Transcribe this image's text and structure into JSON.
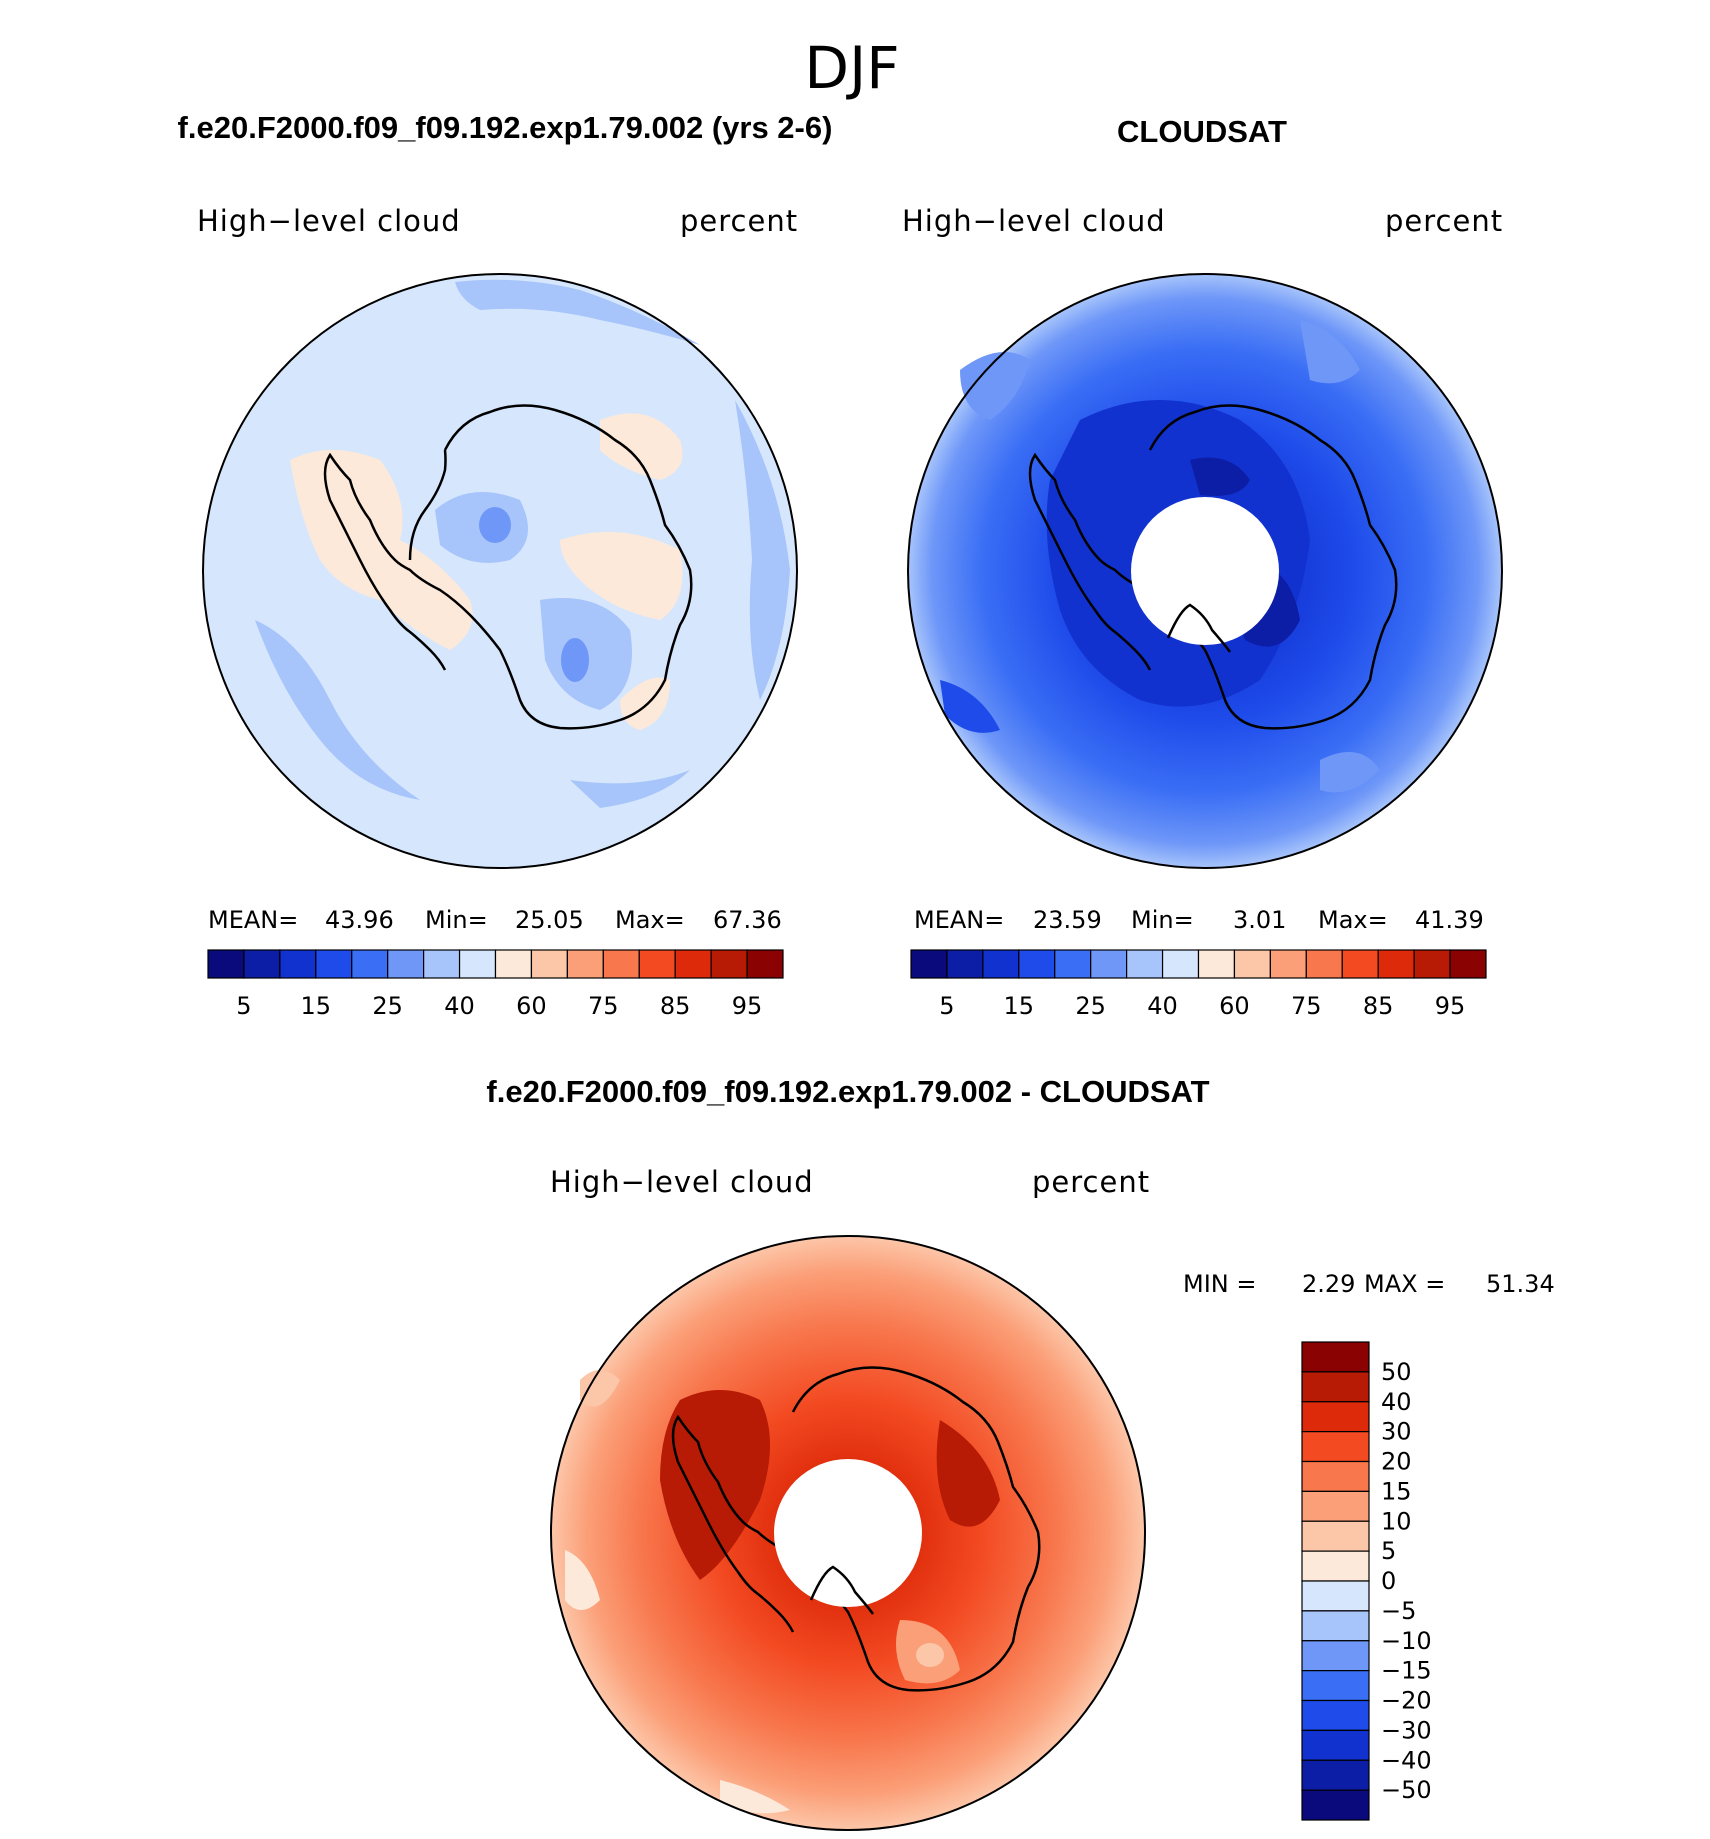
{
  "season_title": "DJF",
  "color_scale_abs": [
    "#0a0a7d",
    "#0c1ea6",
    "#1232d0",
    "#1e4bea",
    "#3a6ef5",
    "#6e97f8",
    "#a7c4fb",
    "#d6e7fd",
    "#fde9d9",
    "#fcc6a8",
    "#fb9f78",
    "#f8774d",
    "#f34a22",
    "#dd2a0a",
    "#b71a05",
    "#8a0202"
  ],
  "color_scale_diff": [
    "#0a0a7d",
    "#0c1ea6",
    "#1232d0",
    "#1e4bea",
    "#3a6ef5",
    "#6e97f8",
    "#a7c4fb",
    "#d6e7fd",
    "#fde9d9",
    "#fcc6a8",
    "#fb9f78",
    "#f8774d",
    "#f34a22",
    "#dd2a0a",
    "#b71a05",
    "#8a0202"
  ],
  "panels": [
    {
      "header": "f.e20.F2000.f09_f09.192.exp1.79.002 (yrs 2-6)",
      "variable": "High−level cloud",
      "units": "percent",
      "stats": {
        "mean_label": "MEAN=",
        "mean": "43.96",
        "min_label": "Min=",
        "min": "25.05",
        "max_label": "Max=",
        "max": "67.36"
      },
      "ticks": [
        "5",
        "15",
        "25",
        "40",
        "60",
        "75",
        "85",
        "95"
      ]
    },
    {
      "header": "CLOUDSAT",
      "variable": "High−level cloud",
      "units": "percent",
      "stats": {
        "mean_label": "MEAN=",
        "mean": "23.59",
        "min_label": "Min=",
        "min": "3.01",
        "max_label": "Max=",
        "max": "41.39"
      },
      "ticks": [
        "5",
        "15",
        "25",
        "40",
        "60",
        "75",
        "85",
        "95"
      ]
    }
  ],
  "difference": {
    "header": "f.e20.F2000.f09_f09.192.exp1.79.002 - CLOUDSAT",
    "variable": "High−level cloud",
    "units": "percent",
    "min_label": "MIN =",
    "min": "2.29",
    "max_label": "MAX =",
    "max": "51.34",
    "ticks": [
      "50",
      "40",
      "30",
      "20",
      "15",
      "10",
      "5",
      "0",
      "−5",
      "−10",
      "−15",
      "−20",
      "−30",
      "−40",
      "−50"
    ]
  }
}
